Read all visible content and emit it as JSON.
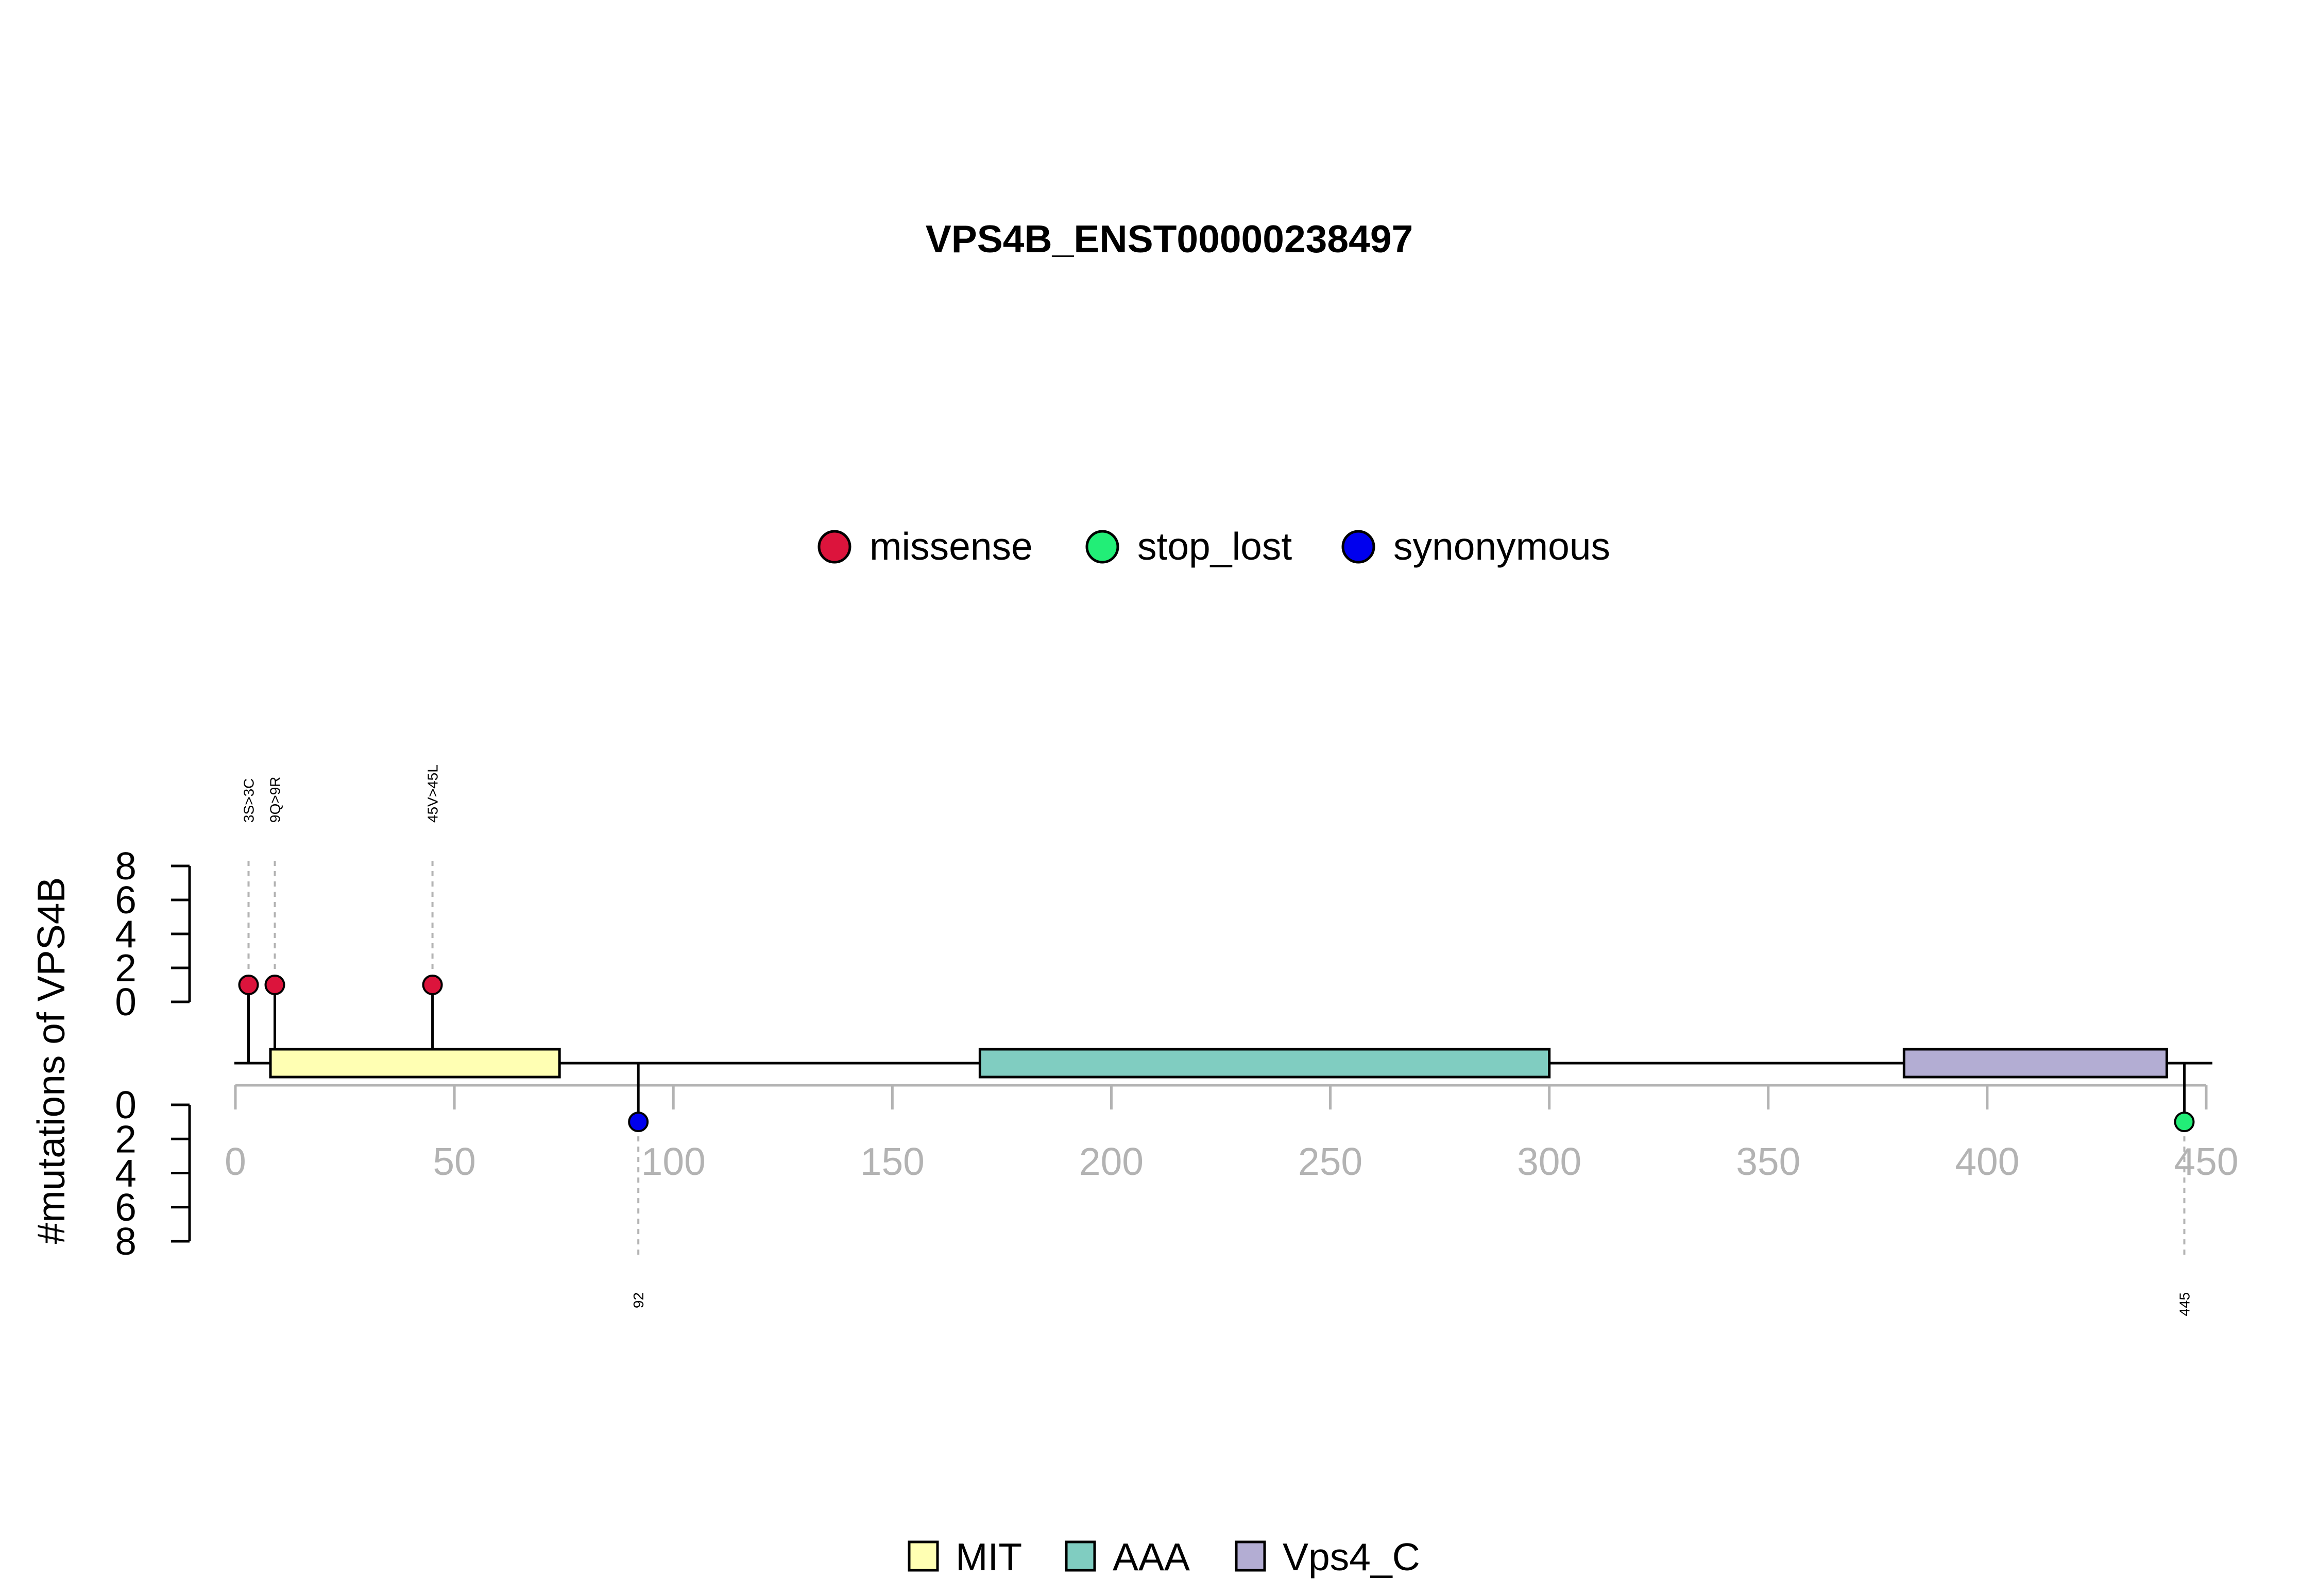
{
  "chart_data": {
    "type": "lollipop",
    "title": "VPS4B_ENST00000238497",
    "ylabel": "#mutations of VPS4B",
    "protein_length": 450,
    "xlim": [
      0,
      450
    ],
    "x_ticks": [
      0,
      50,
      100,
      150,
      200,
      250,
      300,
      350,
      400,
      450
    ],
    "y_ticks": [
      0,
      2,
      4,
      6,
      8
    ],
    "ylim": [
      0,
      8
    ],
    "mutation_legend": [
      {
        "label": "missense",
        "color": "#DC143C"
      },
      {
        "label": "stop_lost",
        "color": "#22EE77"
      },
      {
        "label": "synonymous",
        "color": "#0000EE"
      }
    ],
    "domain_legend": [
      {
        "label": "MIT",
        "color": "#FFFFB3"
      },
      {
        "label": "AAA",
        "color": "#80CDC1"
      },
      {
        "label": "Vps4_C",
        "color": "#B3ADD3"
      }
    ],
    "domains": [
      {
        "name": "MIT",
        "start": 8,
        "end": 74,
        "color": "#FFFFB3"
      },
      {
        "name": "AAA",
        "start": 170,
        "end": 300,
        "color": "#80CDC1"
      },
      {
        "name": "Vps4_C",
        "start": 381,
        "end": 441,
        "color": "#B3ADD3"
      }
    ],
    "mutations": [
      {
        "position": 3,
        "label": "3S>3C",
        "type": "missense",
        "count": 1,
        "side": "top"
      },
      {
        "position": 9,
        "label": "9Q>9R",
        "type": "missense",
        "count": 1,
        "side": "top"
      },
      {
        "position": 45,
        "label": "45V>45L",
        "type": "missense",
        "count": 1,
        "side": "top"
      },
      {
        "position": 92,
        "label": "92",
        "type": "synonymous",
        "count": 1,
        "side": "bottom"
      },
      {
        "position": 445,
        "label": "445",
        "type": "stop_lost",
        "count": 1,
        "side": "bottom"
      }
    ]
  }
}
